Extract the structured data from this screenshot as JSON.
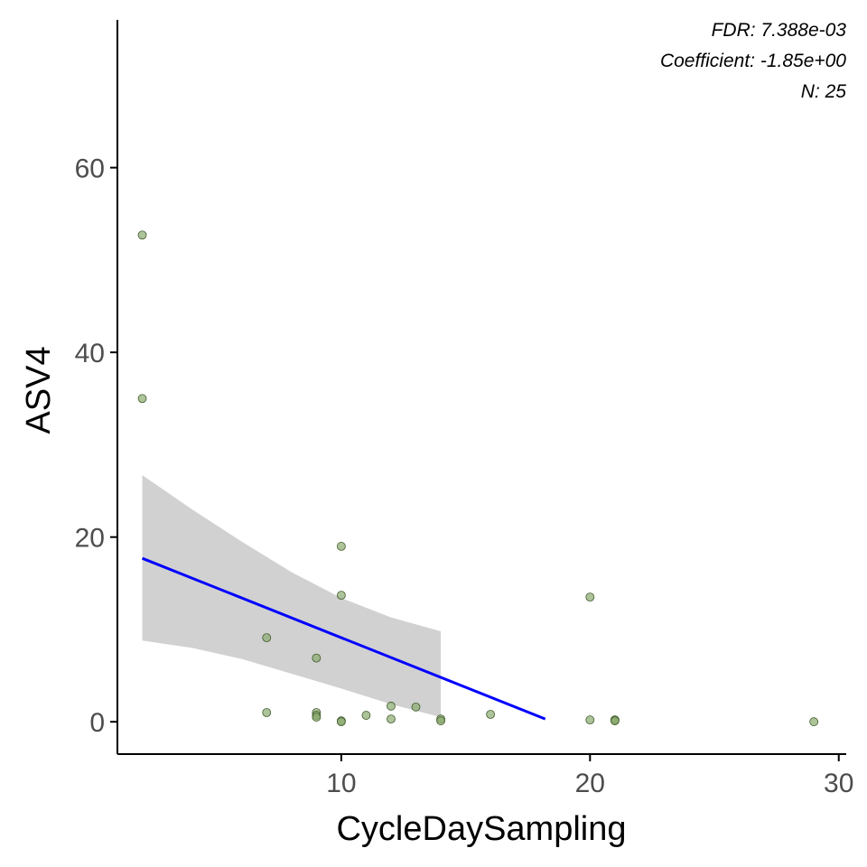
{
  "chart_data": {
    "type": "scatter",
    "xlabel": "CycleDaySampling",
    "ylabel": "ASV4",
    "xlim": [
      1,
      30.3
    ],
    "ylim": [
      -3.5,
      76
    ],
    "x_ticks": [
      10,
      20,
      30
    ],
    "y_ticks": [
      0,
      20,
      40,
      60
    ],
    "grid": false,
    "points": [
      {
        "x": 2,
        "y": 52.7
      },
      {
        "x": 2,
        "y": 35.0
      },
      {
        "x": 7,
        "y": 9.1
      },
      {
        "x": 7,
        "y": 1.0
      },
      {
        "x": 9,
        "y": 6.9
      },
      {
        "x": 9,
        "y": 1.0
      },
      {
        "x": 9,
        "y": 0.7
      },
      {
        "x": 9,
        "y": 0.5
      },
      {
        "x": 10,
        "y": 19.0
      },
      {
        "x": 10,
        "y": 13.7
      },
      {
        "x": 10,
        "y": 0.1
      },
      {
        "x": 10,
        "y": 0.0
      },
      {
        "x": 11,
        "y": 0.7
      },
      {
        "x": 12,
        "y": 1.7
      },
      {
        "x": 12,
        "y": 0.3
      },
      {
        "x": 13,
        "y": 1.6
      },
      {
        "x": 14,
        "y": 0.3
      },
      {
        "x": 14,
        "y": 0.1
      },
      {
        "x": 16,
        "y": 0.8
      },
      {
        "x": 20,
        "y": 13.5
      },
      {
        "x": 20,
        "y": 0.2
      },
      {
        "x": 21,
        "y": 0.2
      },
      {
        "x": 21,
        "y": 0.2
      },
      {
        "x": 21,
        "y": 0.1
      },
      {
        "x": 29,
        "y": 0.0
      }
    ],
    "fit_line": {
      "x": [
        2,
        18.2
      ],
      "y": [
        17.7,
        0.3
      ]
    },
    "confidence_band": {
      "x": [
        2,
        4,
        6,
        8,
        10,
        12,
        14
      ],
      "upper": [
        26.7,
        23.0,
        19.5,
        16.2,
        13.4,
        11.3,
        9.8
      ],
      "lower": [
        8.8,
        8.0,
        6.8,
        5.2,
        3.6,
        1.9,
        0.5
      ]
    },
    "annotations": [
      "FDR: 7.388e-03",
      "Coefficient: -1.85e+00",
      "N: 25"
    ],
    "colors": {
      "point_fill": "#8aaa6e",
      "point_stroke": "#3f5a2a",
      "line": "#0000ff",
      "band": "#cccccc",
      "axis": "#000000"
    }
  }
}
